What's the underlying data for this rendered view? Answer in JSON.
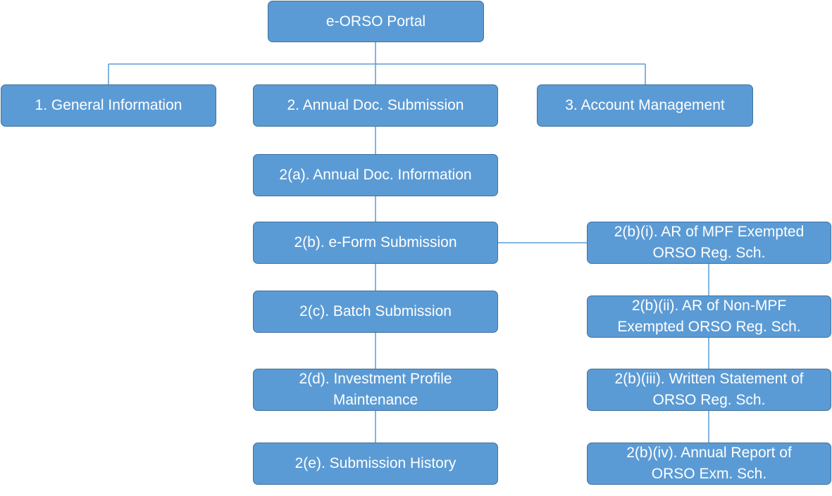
{
  "colors": {
    "node_fill": "#5B9BD5",
    "node_border": "#41719C",
    "connector": "#5B9BD5",
    "text": "#FFFFFF"
  },
  "nodes": {
    "root": "e-ORSO Portal",
    "general_information": "1. General Information",
    "annual_doc_submission": "2. Annual Doc. Submission",
    "account_management": "3. Account Management",
    "annual_doc_information": "2(a). Annual Doc. Information",
    "eform_submission": "2(b). e-Form Submission",
    "batch_submission": "2(c). Batch Submission",
    "investment_profile_maintenance": "2(d). Investment Profile\nMaintenance",
    "submission_history": "2(e). Submission History",
    "ar_mpf_exempted": "2(b)(i). AR of MPF Exempted\nORSO Reg. Sch.",
    "ar_non_mpf_exempted": "2(b)(ii). AR of Non-MPF\nExempted ORSO Reg. Sch.",
    "written_statement": "2(b)(iii). Written Statement of\nORSO Reg. Sch.",
    "annual_report_exm": "2(b)(iv). Annual Report of\nORSO Exm. Sch."
  }
}
